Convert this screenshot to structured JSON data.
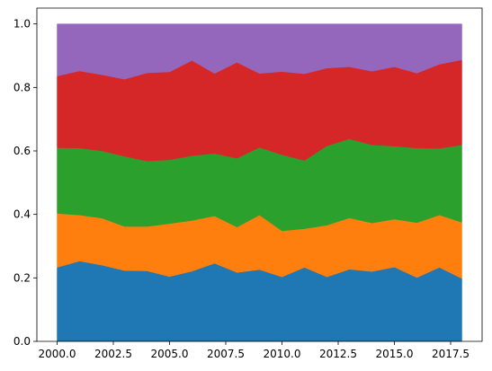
{
  "chart_data": {
    "type": "area",
    "stacked": true,
    "x": [
      2000,
      2001,
      2002,
      2003,
      2004,
      2005,
      2006,
      2007,
      2008,
      2009,
      2010,
      2011,
      2012,
      2013,
      2014,
      2015,
      2016,
      2017,
      2018
    ],
    "xlim": [
      1999.1,
      2018.9
    ],
    "ylim": [
      0,
      1.05
    ],
    "xticks": [
      2000,
      2002.5,
      2005,
      2007.5,
      2010,
      2012.5,
      2015,
      2017.5
    ],
    "xtick_labels": [
      "2000.0",
      "2002.5",
      "2005.0",
      "2007.5",
      "2010.0",
      "2012.5",
      "2015.0",
      "2017.5"
    ],
    "yticks": [
      0,
      0.2,
      0.4,
      0.6,
      0.8,
      1.0
    ],
    "ytick_labels": [
      "0.0",
      "0.2",
      "0.4",
      "0.6",
      "0.8",
      "1.0"
    ],
    "grid": false,
    "legend": "none",
    "series": [
      {
        "color": "#1f77b4",
        "values": [
          0.233,
          0.253,
          0.24,
          0.223,
          0.222,
          0.204,
          0.221,
          0.246,
          0.217,
          0.226,
          0.203,
          0.233,
          0.203,
          0.227,
          0.22,
          0.234,
          0.201,
          0.233,
          0.198
        ]
      },
      {
        "color": "#ff7f0e",
        "values": [
          0.17,
          0.145,
          0.148,
          0.139,
          0.14,
          0.167,
          0.16,
          0.149,
          0.143,
          0.172,
          0.145,
          0.122,
          0.163,
          0.162,
          0.153,
          0.151,
          0.173,
          0.165,
          0.177
        ]
      },
      {
        "color": "#2ca02c",
        "values": [
          0.207,
          0.211,
          0.212,
          0.221,
          0.206,
          0.201,
          0.204,
          0.197,
          0.217,
          0.213,
          0.24,
          0.215,
          0.25,
          0.249,
          0.246,
          0.23,
          0.235,
          0.21,
          0.244
        ]
      },
      {
        "color": "#d62728",
        "values": [
          0.226,
          0.243,
          0.24,
          0.243,
          0.278,
          0.277,
          0.3,
          0.252,
          0.302,
          0.233,
          0.262,
          0.273,
          0.245,
          0.227,
          0.232,
          0.25,
          0.236,
          0.265,
          0.268
        ]
      },
      {
        "color": "#9467bd",
        "values": [
          0.164,
          0.148,
          0.16,
          0.174,
          0.154,
          0.151,
          0.115,
          0.156,
          0.121,
          0.156,
          0.15,
          0.157,
          0.139,
          0.135,
          0.149,
          0.135,
          0.155,
          0.127,
          0.113
        ]
      }
    ]
  }
}
